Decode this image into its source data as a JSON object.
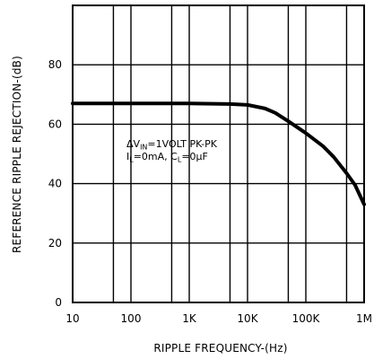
{
  "chart_data": {
    "type": "line",
    "title": "",
    "xlabel": "RIPPLE FREQUENCY-(Hz)",
    "ylabel": "REFERENCE RIPPLE REJECTION-(dB)",
    "x_scale": "log",
    "xlim": [
      10,
      1000000
    ],
    "ylim": [
      0,
      100
    ],
    "grid": true,
    "legend": "none",
    "x_ticks": [
      {
        "value": 10,
        "label": "10"
      },
      {
        "value": 100,
        "label": "100"
      },
      {
        "value": 1000,
        "label": "1K"
      },
      {
        "value": 10000,
        "label": "10K"
      },
      {
        "value": 100000,
        "label": "100K"
      },
      {
        "value": 1000000,
        "label": "1M"
      }
    ],
    "y_ticks": [
      {
        "value": 0,
        "label": "0"
      },
      {
        "value": 20,
        "label": "20"
      },
      {
        "value": 40,
        "label": "40"
      },
      {
        "value": 60,
        "label": "60"
      },
      {
        "value": 80,
        "label": "80"
      }
    ],
    "annotation": {
      "line1": {
        "p1": "ΔV",
        "s1": "IN",
        "p2": "=1VOLT PK-PK"
      },
      "line2": {
        "p1": "I",
        "s1": "L",
        "p2": "=0mA, C",
        "s2": "L",
        "p3": "=0μF"
      }
    },
    "series": [
      {
        "color": "#000000",
        "x": [
          10,
          100,
          1000,
          5000,
          10000,
          20000,
          30000,
          50000,
          100000,
          200000,
          300000,
          500000,
          700000,
          1000000
        ],
        "y": [
          67,
          67,
          67,
          66.8,
          66.5,
          65.3,
          63.8,
          61,
          57,
          52.5,
          49,
          43.5,
          39.5,
          33
        ]
      }
    ]
  }
}
